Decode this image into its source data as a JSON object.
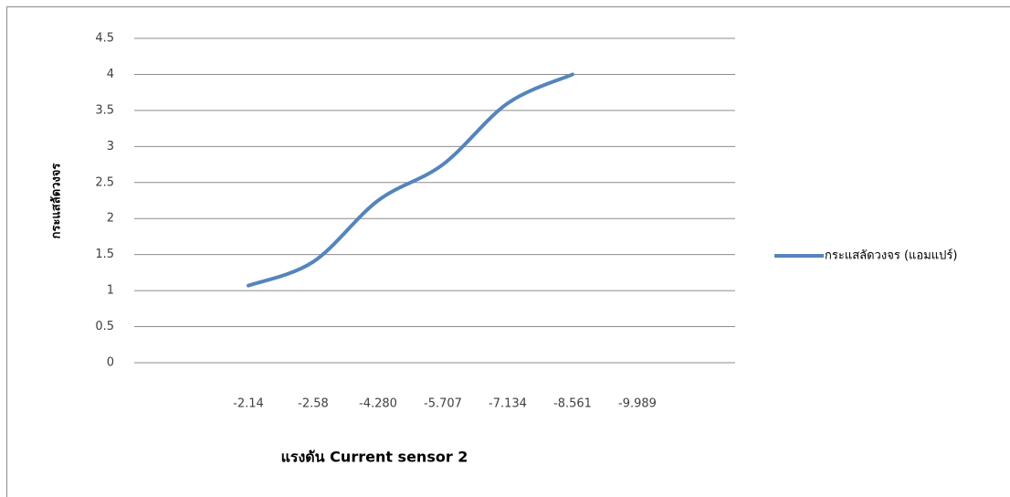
{
  "chart_data": {
    "type": "line",
    "title": "แรงดัน  Current sensor 2",
    "y_label": "กระแสลัดวงจร",
    "categories": [
      "-2.14",
      "-2.58",
      "-4.280",
      "-5.707",
      "-7.134",
      "-8.561",
      "-9.989"
    ],
    "series": [
      {
        "name": "กระแสลัดวงจร (แอมแปร์)",
        "color": "#5584bd",
        "values": [
          1.07,
          1.4,
          2.25,
          2.75,
          3.6,
          4.0,
          null
        ]
      }
    ],
    "ylim": [
      0,
      4.5
    ],
    "yticks": [
      0,
      0.5,
      1,
      1.5,
      2,
      2.5,
      3,
      3.5,
      4,
      4.5
    ],
    "grid": true,
    "legend": "right"
  }
}
